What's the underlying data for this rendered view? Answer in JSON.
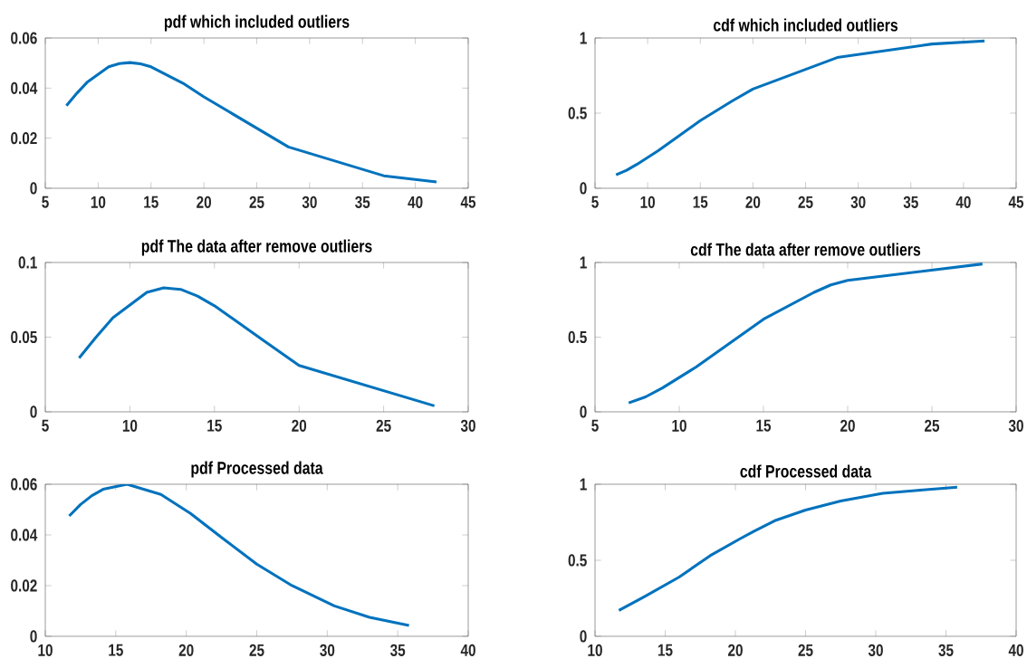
{
  "chart_data": [
    {
      "type": "line",
      "title": "pdf which included outliers",
      "x": [
        7,
        8,
        9,
        11,
        12,
        13,
        14,
        15,
        18,
        20,
        28,
        37,
        42
      ],
      "series": [
        {
          "color": "#0072bd",
          "values": [
            0.033,
            0.038,
            0.0425,
            0.0485,
            0.0498,
            0.0502,
            0.0497,
            0.0485,
            0.042,
            0.0365,
            0.0165,
            0.005,
            0.0025
          ]
        }
      ],
      "xlim": [
        5,
        45
      ],
      "xticks": [
        5,
        10,
        15,
        20,
        25,
        30,
        35,
        40,
        45
      ],
      "ylim": [
        0,
        0.06
      ],
      "yticks": [
        0,
        0.02,
        0.04,
        0.06
      ],
      "marker": "none",
      "line_style": "solid"
    },
    {
      "type": "line",
      "title": "cdf which included outliers",
      "x": [
        7,
        8,
        9,
        11,
        15,
        18,
        20,
        28,
        37,
        42
      ],
      "series": [
        {
          "color": "#0072bd",
          "values": [
            0.09,
            0.12,
            0.16,
            0.25,
            0.45,
            0.58,
            0.66,
            0.87,
            0.96,
            0.98
          ]
        }
      ],
      "xlim": [
        5,
        45
      ],
      "xticks": [
        5,
        10,
        15,
        20,
        25,
        30,
        35,
        40,
        45
      ],
      "ylim": [
        0,
        1
      ],
      "yticks": [
        0,
        0.5,
        1
      ],
      "marker": "none",
      "line_style": "solid"
    },
    {
      "type": "line",
      "title": "pdf The data after remove outliers",
      "x": [
        7,
        8,
        9,
        11,
        12,
        13,
        14,
        15,
        18,
        20,
        28
      ],
      "series": [
        {
          "color": "#0072bd",
          "values": [
            0.036,
            0.05,
            0.063,
            0.08,
            0.083,
            0.082,
            0.0775,
            0.071,
            0.047,
            0.031,
            0.004
          ]
        }
      ],
      "xlim": [
        5,
        30
      ],
      "xticks": [
        5,
        10,
        15,
        20,
        25,
        30
      ],
      "ylim": [
        0,
        0.1
      ],
      "yticks": [
        0,
        0.05,
        0.1
      ],
      "marker": "none",
      "line_style": "solid"
    },
    {
      "type": "line",
      "title": "cdf The data after remove outliers",
      "x": [
        7,
        8,
        9,
        11,
        15,
        18,
        19,
        20,
        28
      ],
      "series": [
        {
          "color": "#0072bd",
          "values": [
            0.06,
            0.1,
            0.16,
            0.3,
            0.62,
            0.8,
            0.85,
            0.88,
            0.99
          ]
        }
      ],
      "xlim": [
        5,
        30
      ],
      "xticks": [
        5,
        10,
        15,
        20,
        25,
        30
      ],
      "ylim": [
        0,
        1
      ],
      "yticks": [
        0,
        0.5,
        1
      ],
      "marker": "none",
      "line_style": "solid"
    },
    {
      "type": "line",
      "title": "pdf Processed data",
      "x": [
        11.7,
        12.5,
        13.3,
        14.1,
        15.8,
        18.2,
        20.3,
        22.5,
        25,
        27.5,
        30.5,
        33,
        35.8
      ],
      "series": [
        {
          "color": "#0072bd",
          "values": [
            0.0475,
            0.052,
            0.0555,
            0.058,
            0.06,
            0.056,
            0.0485,
            0.039,
            0.0285,
            0.02,
            0.012,
            0.0075,
            0.0043
          ]
        }
      ],
      "xlim": [
        10,
        40
      ],
      "xticks": [
        10,
        15,
        20,
        25,
        30,
        35,
        40
      ],
      "ylim": [
        0,
        0.06
      ],
      "yticks": [
        0,
        0.02,
        0.04,
        0.06
      ],
      "marker": "none",
      "line_style": "solid"
    },
    {
      "type": "line",
      "title": "cdf Processed data",
      "x": [
        11.7,
        13.5,
        16,
        18.2,
        20.3,
        21.3,
        22.8,
        25,
        27.5,
        30.5,
        33,
        35.8
      ],
      "series": [
        {
          "color": "#0072bd",
          "values": [
            0.17,
            0.26,
            0.39,
            0.53,
            0.64,
            0.69,
            0.76,
            0.83,
            0.89,
            0.94,
            0.96,
            0.98
          ]
        }
      ],
      "xlim": [
        10,
        40
      ],
      "xticks": [
        10,
        15,
        20,
        25,
        30,
        35,
        40
      ],
      "ylim": [
        0,
        1
      ],
      "yticks": [
        0,
        0.5,
        1
      ],
      "marker": "none",
      "line_style": "solid"
    }
  ]
}
